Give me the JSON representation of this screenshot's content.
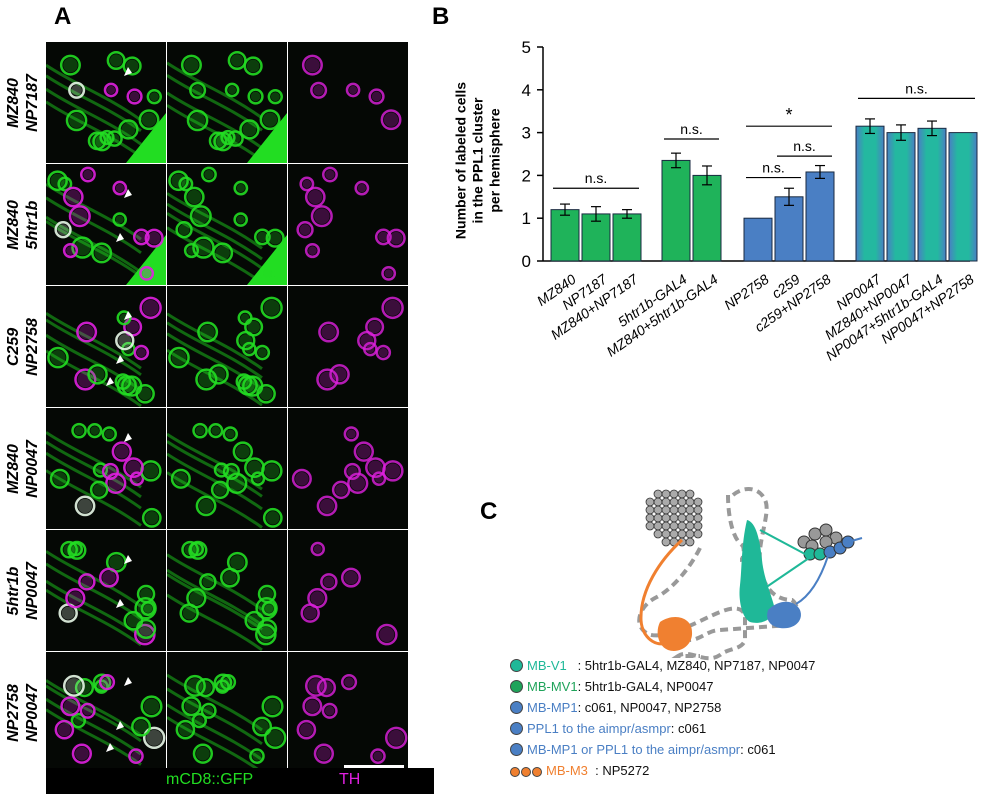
{
  "panelA": {
    "letter": "A",
    "rows": [
      {
        "line1": "MZ840",
        "line2": "NP7187"
      },
      {
        "line1": "MZ840",
        "line2": "5htr1b"
      },
      {
        "line1": "C259",
        "line2": "NP2758"
      },
      {
        "line1": "MZ840",
        "line2": "NP0047"
      },
      {
        "line1": "5htr1b",
        "line2": "NP0047"
      },
      {
        "line1": "NP2758",
        "line2": "NP0047"
      }
    ],
    "channel_green": "mCD8::GFP",
    "channel_magenta": "TH",
    "colors": {
      "green": "#22dd22",
      "magenta": "#e020e0",
      "overlap": "#e8f8e8"
    }
  },
  "panelB": {
    "letter": "B",
    "chart_data": {
      "type": "bar",
      "ylabel": "Number of labeled cells in the PPL1 cluster per hemisphere",
      "ylabel_lines": [
        "Number of labeled cells",
        "in the PPL1 cluster",
        "per hemisphere"
      ],
      "ylim": [
        0,
        5
      ],
      "yticks": [
        0,
        1,
        2,
        3,
        4,
        5
      ],
      "groups": [
        {
          "bars": [
            {
              "label": "MZ840",
              "value": 1.2,
              "err": 0.13,
              "color": "green"
            },
            {
              "label": "NP7187",
              "value": 1.1,
              "err": 0.17,
              "color": "green"
            },
            {
              "label": "MZ840+NP7187",
              "value": 1.1,
              "err": 0.1,
              "color": "green"
            }
          ],
          "sig": [
            {
              "from": 0,
              "to": 2,
              "y": 1.7,
              "text": "n.s."
            }
          ]
        },
        {
          "bars": [
            {
              "label": "5htr1b-GAL4",
              "value": 2.35,
              "err": 0.17,
              "color": "green"
            },
            {
              "label": "MZ840+5htr1b-GAL4",
              "value": 2.0,
              "err": 0.22,
              "color": "green"
            }
          ],
          "sig": [
            {
              "from": 0,
              "to": 1,
              "y": 2.85,
              "text": "n.s."
            }
          ]
        },
        {
          "bars": [
            {
              "label": "NP2758",
              "value": 1.0,
              "err": 0,
              "color": "blue"
            },
            {
              "label": "c259",
              "value": 1.5,
              "err": 0.2,
              "color": "blue"
            },
            {
              "label": "c259+NP2758",
              "value": 2.08,
              "err": 0.15,
              "color": "blue"
            }
          ],
          "sig": [
            {
              "from": 0,
              "to": 2,
              "y": 3.15,
              "text": "*"
            },
            {
              "from": 0,
              "to": 1,
              "y": 1.95,
              "text": "n.s."
            },
            {
              "from": 1,
              "to": 2,
              "y": 2.45,
              "text": "n.s."
            }
          ]
        },
        {
          "bars": [
            {
              "label": "NP0047",
              "value": 3.15,
              "err": 0.17,
              "color": "blue-green"
            },
            {
              "label": "MZ840+NP0047",
              "value": 3.0,
              "err": 0.18,
              "color": "blue-green"
            },
            {
              "label": "NP0047+5htr1b-GAL4",
              "value": 3.1,
              "err": 0.17,
              "color": "blue-green"
            },
            {
              "label": "NP0047+NP2758",
              "value": 3.0,
              "err": 0,
              "color": "blue-green"
            }
          ],
          "sig": [
            {
              "from": 0,
              "to": 3,
              "y": 3.8,
              "text": "n.s."
            }
          ]
        }
      ],
      "colors": {
        "green": "#1fb35a",
        "blue": "#4a7fc4",
        "teal_center": "#24b8a0",
        "edge": "#1a2a40"
      }
    }
  },
  "panelC": {
    "letter": "C",
    "legend": [
      {
        "name": "MB-V1",
        "sep": "   : ",
        "lines": "5htr1b-GAL4, MZ840, NP7187, NP0047",
        "dot_color": "#1fb898",
        "name_color": "#1fb898"
      },
      {
        "name": "MB-MV1",
        "sep": ": ",
        "lines": "5htr1b-GAL4, NP0047",
        "dot_color": "#1fa35a",
        "name_color": "#1fa35a"
      },
      {
        "name": "MB-MP1",
        "sep": ": ",
        "lines": "c061, NP0047, NP2758",
        "dot_color": "#4a7fc4",
        "name_color": "#4a7fc4"
      },
      {
        "name": "PPL1 to the aimpr/asmpr",
        "sep": ": ",
        "lines": "c061",
        "dot_color": "#4a7fc4",
        "name_color": "#4a7fc4"
      },
      {
        "name": "MB-MP1 or PPL1 to the aimpr/asmpr",
        "sep": ": ",
        "lines": "c061",
        "dot_color": "#4a7fc4",
        "name_color": "#4a7fc4"
      },
      {
        "name": "MB-M3",
        "sep": "  : ",
        "lines": "NP5272",
        "dot_color": "#f08030",
        "name_color": "#f08030",
        "triple": true
      }
    ]
  }
}
